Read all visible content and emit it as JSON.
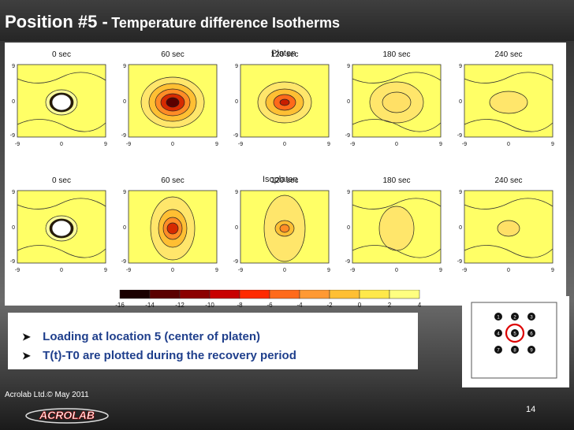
{
  "title": {
    "main": "Position #5 -",
    "sub": "Temperature difference Isotherms"
  },
  "rows": [
    {
      "label": "Platen",
      "times": [
        "0 sec",
        "60 sec",
        "120 sec",
        "180 sec",
        "240 sec"
      ]
    },
    {
      "label": "Isoplaten",
      "times": [
        "0 sec",
        "60 sec",
        "120 sec",
        "180 sec",
        "240 sec"
      ]
    }
  ],
  "axis": {
    "xticks": [
      "-9",
      "0",
      "9"
    ],
    "yticks": [
      "9",
      "0",
      "-9"
    ]
  },
  "colorbar": {
    "ticks": [
      "-16",
      "-14",
      "-12",
      "-10",
      "-8",
      "-6",
      "-4",
      "-2",
      "0",
      "2",
      "4"
    ],
    "colors": [
      "#1a0000",
      "#5a0000",
      "#8b0000",
      "#c80000",
      "#ff2a00",
      "#ff6a1a",
      "#ff9933",
      "#ffbf33",
      "#ffe84a",
      "#ffff80",
      "#fff4a8"
    ]
  },
  "bullets": [
    "Loading at location 5 (center of platen)",
    "T(t)-T0 are plotted during the recovery period"
  ],
  "diagram": {
    "numbers": [
      "1",
      "2",
      "3",
      "4",
      "5",
      "6",
      "7",
      "8",
      "9"
    ],
    "highlight": "5"
  },
  "footer": "Acrolab Ltd.© May 2011",
  "logo": "ACROLAB",
  "page_number": "14"
}
